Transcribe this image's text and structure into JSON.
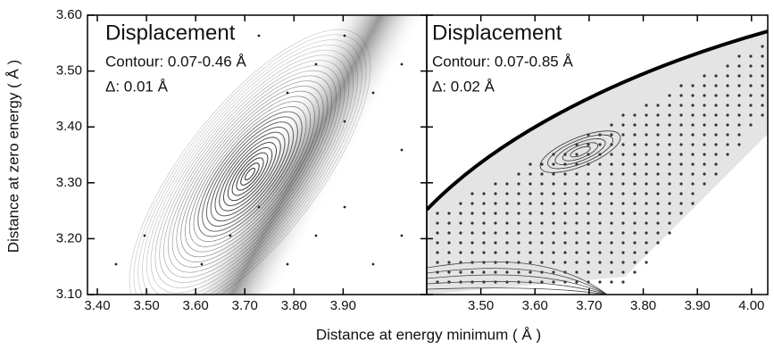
{
  "chart_data": [
    {
      "type": "contour",
      "title": "Displacement",
      "annotations": [
        "Contour: 0.07-0.46 Å",
        "Δ: 0.01 Å"
      ],
      "xlabel": "Distance at energy minimum ( Å )",
      "ylabel": "Distance at zero energy ( Å )",
      "xlim": [
        3.38,
        4.07
      ],
      "xticks": [
        {
          "value": 3.4,
          "label": "3.40"
        },
        {
          "value": 3.5,
          "label": "3.50"
        },
        {
          "value": 3.6,
          "label": "3.60"
        },
        {
          "value": 3.7,
          "label": "3.70"
        },
        {
          "value": 3.8,
          "label": "3.80"
        },
        {
          "value": 3.9,
          "label": "3.90"
        }
      ],
      "ylim": [
        3.1,
        3.6
      ],
      "yticks": [
        {
          "value": 3.1,
          "label": "3.10"
        },
        {
          "value": 3.2,
          "label": "3.20"
        },
        {
          "value": 3.3,
          "label": "3.30"
        },
        {
          "value": 3.4,
          "label": "3.40"
        },
        {
          "value": 3.5,
          "label": "3.50"
        },
        {
          "value": 3.6,
          "label": "3.60"
        }
      ]
    },
    {
      "type": "contour",
      "title": "Displacement",
      "annotations": [
        "Contour: 0.07-0.85 Å",
        "Δ: 0.02 Å"
      ],
      "xlim": [
        3.4,
        4.03
      ],
      "xticks": [
        {
          "value": 3.5,
          "label": "3.50"
        },
        {
          "value": 3.6,
          "label": "3.60"
        },
        {
          "value": 3.7,
          "label": "3.70"
        },
        {
          "value": 3.8,
          "label": "3.80"
        },
        {
          "value": 3.9,
          "label": "3.90"
        },
        {
          "value": 4.0,
          "label": "4.00"
        }
      ],
      "ylim": [
        3.1,
        3.6
      ]
    }
  ]
}
